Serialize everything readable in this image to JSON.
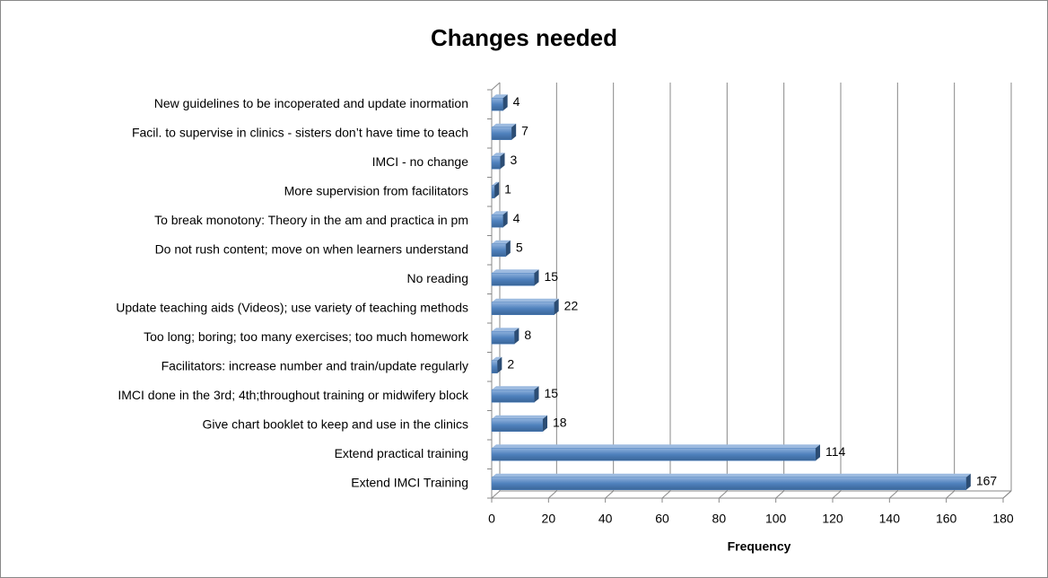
{
  "chart_data": {
    "type": "bar",
    "orientation": "horizontal",
    "title": "Changes needed",
    "x_label": "Frequency",
    "categories": [
      "New guidelines to be incoperated and update inormation",
      "Facil. to supervise in clinics - sisters don’t have time to teach",
      "IMCI - no change",
      "More supervision from facilitators",
      "To break monotony: Theory in the am and practica in pm",
      "Do not rush content; move on when learners understand",
      "No reading",
      "Update teaching aids (Videos); use variety of teaching methods",
      "Too long; boring; too many exercises; too much homework",
      "Facilitators: increase number and train/update regularly",
      "IMCI done in the 3rd; 4th;throughout training or midwifery block",
      "Give chart booklet to keep and use in the clinics",
      "Extend practical training",
      "Extend IMCI Training"
    ],
    "values": [
      4,
      7,
      3,
      1,
      4,
      5,
      15,
      22,
      8,
      2,
      15,
      18,
      114,
      167
    ],
    "color": "#4f81bd",
    "xlim": [
      0,
      180
    ],
    "xticks": [
      0,
      20,
      40,
      60,
      80,
      100,
      120,
      140,
      160,
      180
    ],
    "grid": true
  }
}
